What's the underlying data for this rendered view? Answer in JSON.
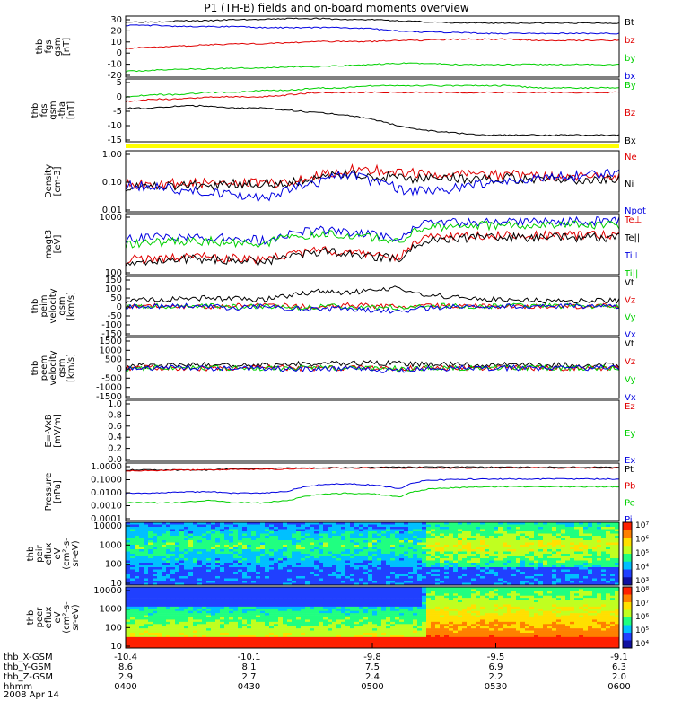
{
  "title": "P1 (TH-B) fields and on-board moments overview",
  "date_label": "2008 Apr 14",
  "colors": {
    "black": "#000000",
    "red": "#e00000",
    "green": "#00d000",
    "blue": "#0000e0",
    "yellow": "#ffff00"
  },
  "chart_data": [
    {
      "type": "line",
      "ylabel_lines": [
        "thb",
        "fgs",
        "gsm",
        "[nT]"
      ],
      "yticks": [
        "30",
        "20",
        "10",
        "0",
        "-10",
        "-20"
      ],
      "ylim": [
        -22,
        31
      ],
      "series": [
        {
          "name": "Bt",
          "color": "#000000",
          "values": [
            26,
            26,
            27,
            27,
            28,
            28,
            29,
            29,
            28,
            28,
            27,
            26,
            25,
            25,
            25,
            25,
            25,
            25,
            25
          ]
        },
        {
          "name": "bz",
          "color": "#e00000",
          "values": [
            3,
            4,
            5,
            6,
            7,
            7,
            8,
            9,
            9,
            9,
            10,
            10,
            11,
            11,
            11,
            10,
            10,
            10,
            10
          ]
        },
        {
          "name": "by",
          "color": "#00d000",
          "values": [
            -17,
            -16,
            -15,
            -15,
            -14,
            -14,
            -13,
            -13,
            -12,
            -11,
            -10,
            -10,
            -11,
            -11,
            -11,
            -11,
            -11,
            -11,
            -11
          ]
        },
        {
          "name": "bx",
          "color": "#0000e0",
          "values": [
            23,
            23,
            22,
            22,
            22,
            21,
            21,
            21,
            21,
            20,
            18,
            17,
            17,
            16,
            16,
            16,
            16,
            16,
            16
          ]
        }
      ]
    },
    {
      "type": "line",
      "ylabel_lines": [
        "thb",
        "fgs",
        "gsm",
        "-tha",
        "[nT]"
      ],
      "yticks": [
        "5",
        "0",
        "-5",
        "-10",
        "-15"
      ],
      "ylim": [
        -18,
        10
      ],
      "series": [
        {
          "name": "By",
          "color": "#00d000",
          "values": [
            2,
            3,
            3,
            4,
            4,
            5,
            5,
            6,
            6,
            7,
            7,
            7,
            7,
            7,
            7,
            6,
            6,
            6,
            6
          ]
        },
        {
          "name": "Bz",
          "color": "#e00000",
          "values": [
            0,
            1,
            1,
            2,
            2,
            2,
            3,
            4,
            4,
            4,
            4,
            4,
            4,
            4,
            4,
            4,
            4,
            4,
            4
          ]
        },
        {
          "name": "Bx",
          "color": "#000000",
          "values": [
            -3,
            -3,
            -2,
            -2,
            -3,
            -3,
            -4,
            -5,
            -6,
            -8,
            -11,
            -13,
            -14,
            -15,
            -15,
            -15,
            -15,
            -15,
            -15
          ]
        }
      ]
    },
    {
      "type": "line",
      "ylabel_lines": [
        "Density",
        "[cm-3]"
      ],
      "yticks": [
        "1.00",
        "0.10",
        "0.01"
      ],
      "log": true,
      "ylim": [
        0.01,
        1.4
      ],
      "series": [
        {
          "name": "Ne",
          "color": "#e00000",
          "values": [
            0.1,
            0.09,
            0.1,
            0.1,
            0.11,
            0.1,
            0.11,
            0.2,
            0.3,
            0.3,
            0.25,
            0.22,
            0.2,
            0.2,
            0.2,
            0.18,
            0.18,
            0.18,
            0.18
          ]
        },
        {
          "name": "Ni",
          "color": "#000000",
          "values": [
            0.08,
            0.09,
            0.08,
            0.09,
            0.1,
            0.1,
            0.1,
            0.15,
            0.2,
            0.18,
            0.16,
            0.15,
            0.15,
            0.15,
            0.15,
            0.14,
            0.14,
            0.14,
            0.14
          ]
        },
        {
          "name": "Npot",
          "color": "#0000e0",
          "values": [
            0.09,
            0.07,
            0.06,
            0.05,
            0.04,
            0.03,
            0.06,
            0.1,
            0.2,
            0.12,
            0.06,
            0.05,
            0.07,
            0.1,
            0.12,
            0.15,
            0.17,
            0.2,
            0.22
          ]
        }
      ]
    },
    {
      "type": "line",
      "ylabel_lines": [
        "magt3",
        "[eV]"
      ],
      "yticks": [
        "1000",
        "100"
      ],
      "log": true,
      "ylim": [
        30,
        8000
      ],
      "series": [
        {
          "name": "Te⊥",
          "color": "#e00000",
          "values": [
            120,
            130,
            140,
            150,
            130,
            120,
            180,
            300,
            250,
            200,
            150,
            900,
            1000,
            1100,
            1100,
            1100,
            1100,
            1100,
            1100
          ]
        },
        {
          "name": "Te||",
          "color": "#000000",
          "values": [
            100,
            110,
            120,
            130,
            110,
            100,
            150,
            250,
            200,
            160,
            120,
            700,
            800,
            900,
            900,
            900,
            900,
            900,
            900
          ]
        },
        {
          "name": "Ti⊥",
          "color": "#0000e0",
          "values": [
            800,
            900,
            900,
            950,
            800,
            700,
            1200,
            1800,
            1500,
            1300,
            900,
            3200,
            3500,
            3800,
            4000,
            4000,
            4000,
            4000,
            4000
          ]
        },
        {
          "name": "Ti||",
          "color": "#00d000",
          "values": [
            500,
            600,
            600,
            650,
            550,
            500,
            900,
            1300,
            1100,
            900,
            650,
            2200,
            2500,
            2700,
            2800,
            2800,
            2800,
            2800,
            2800
          ]
        }
      ]
    },
    {
      "type": "line",
      "ylabel_lines": [
        "thb",
        "peim",
        "velocity",
        "gsm",
        "[km/s]"
      ],
      "yticks": [
        "150",
        "100",
        "50",
        "0",
        "-50",
        "-100",
        "-150"
      ],
      "ylim": [
        -165,
        165
      ],
      "series": [
        {
          "name": "Vt",
          "color": "#000000",
          "values": [
            30,
            35,
            40,
            45,
            40,
            35,
            60,
            80,
            70,
            90,
            100,
            60,
            50,
            40,
            35,
            30,
            30,
            30,
            30
          ]
        },
        {
          "name": "Vz",
          "color": "#e00000",
          "values": [
            0,
            5,
            0,
            -5,
            0,
            5,
            0,
            -10,
            5,
            0,
            -5,
            0,
            0,
            0,
            0,
            0,
            0,
            0,
            0
          ]
        },
        {
          "name": "Vy",
          "color": "#00d000",
          "values": [
            -5,
            0,
            -5,
            0,
            -5,
            0,
            -10,
            -5,
            0,
            -10,
            -5,
            0,
            0,
            0,
            0,
            0,
            0,
            0,
            0
          ]
        },
        {
          "name": "Vx",
          "color": "#0000e0",
          "values": [
            0,
            -5,
            0,
            0,
            -10,
            0,
            -15,
            -20,
            -10,
            -25,
            -30,
            -10,
            -5,
            0,
            0,
            0,
            0,
            0,
            0
          ]
        }
      ]
    },
    {
      "type": "line",
      "ylabel_lines": [
        "thb",
        "peem",
        "velocity",
        "gsm",
        "[km/s]"
      ],
      "yticks": [
        "1500",
        "1000",
        "500",
        "0",
        "-500",
        "-1000",
        "-1500"
      ],
      "ylim": [
        -1650,
        1650
      ],
      "series": [
        {
          "name": "Vt",
          "color": "#000000",
          "values": [
            100,
            120,
            140,
            160,
            150,
            140,
            200,
            250,
            220,
            260,
            240,
            200,
            180,
            170,
            160,
            150,
            150,
            150,
            150
          ]
        },
        {
          "name": "Vz",
          "color": "#e00000",
          "values": [
            0,
            20,
            0,
            -20,
            0,
            20,
            0,
            -30,
            20,
            0,
            -20,
            0,
            0,
            0,
            0,
            0,
            0,
            0,
            0
          ]
        },
        {
          "name": "Vy",
          "color": "#00d000",
          "values": [
            -20,
            0,
            -20,
            0,
            -20,
            0,
            -30,
            -20,
            0,
            -30,
            -20,
            0,
            0,
            0,
            0,
            0,
            0,
            0,
            0
          ]
        },
        {
          "name": "Vx",
          "color": "#0000e0",
          "values": [
            0,
            -20,
            0,
            0,
            -40,
            0,
            -60,
            -80,
            -40,
            -100,
            -120,
            -40,
            -20,
            0,
            0,
            0,
            0,
            0,
            0
          ]
        }
      ]
    },
    {
      "type": "line",
      "ylabel_lines": [
        "E=-VxB",
        "[mV/m]"
      ],
      "yticks": [
        "1.0",
        "0.8",
        "0.6",
        "0.4",
        "0.2",
        "0.0"
      ],
      "ylim": [
        0,
        1.0
      ],
      "series": [
        {
          "name": "Ez",
          "color": "#e00000",
          "values": []
        },
        {
          "name": "Ey",
          "color": "#00d000",
          "values": []
        },
        {
          "name": "Ex",
          "color": "#0000e0",
          "values": []
        }
      ]
    },
    {
      "type": "line",
      "ylabel_lines": [
        "Pressure",
        "[nPa]"
      ],
      "yticks": [
        "1.0000",
        "0.1000",
        "0.0100",
        "0.0010",
        "0.0001"
      ],
      "log": true,
      "ylim": [
        0.0001,
        1.6
      ],
      "series": [
        {
          "name": "Pt",
          "color": "#000000",
          "values": [
            0.5,
            0.5,
            0.5,
            0.5,
            0.6,
            0.6,
            0.7,
            0.7,
            0.75,
            0.75,
            0.8,
            0.8,
            0.8,
            0.8,
            0.8,
            0.8,
            0.8,
            0.8,
            0.8
          ]
        },
        {
          "name": "Pb",
          "color": "#e00000",
          "values": [
            0.45,
            0.45,
            0.5,
            0.5,
            0.55,
            0.55,
            0.6,
            0.65,
            0.7,
            0.7,
            0.7,
            0.7,
            0.7,
            0.7,
            0.7,
            0.7,
            0.7,
            0.7,
            0.7
          ]
        },
        {
          "name": "Pe",
          "color": "#00d000",
          "values": [
            0.002,
            0.002,
            0.002,
            0.003,
            0.002,
            0.002,
            0.003,
            0.008,
            0.01,
            0.009,
            0.005,
            0.02,
            0.025,
            0.03,
            0.03,
            0.03,
            0.03,
            0.03,
            0.03
          ]
        },
        {
          "name": "Pi",
          "color": "#0000e0",
          "values": [
            0.01,
            0.01,
            0.012,
            0.013,
            0.01,
            0.01,
            0.015,
            0.04,
            0.05,
            0.04,
            0.02,
            0.09,
            0.1,
            0.11,
            0.11,
            0.11,
            0.11,
            0.11,
            0.11
          ]
        }
      ]
    },
    {
      "type": "heatmap",
      "ylabel_lines": [
        "thb",
        "peir",
        "eflux",
        "eV",
        "(cm²-s-",
        "sr-eV)"
      ],
      "yticks": [
        "10000",
        "1000",
        "100",
        "10"
      ],
      "colorbar_ticks": [
        "10⁷",
        "10⁶",
        "10⁵",
        "10⁴",
        "10³"
      ]
    },
    {
      "type": "heatmap",
      "ylabel_lines": [
        "thb",
        "peer",
        "eflux",
        "eV",
        "(cm²-s-",
        "sr-eV)"
      ],
      "yticks": [
        "10000",
        "1000",
        "100",
        "10"
      ],
      "colorbar_ticks": [
        "10⁸",
        "10⁷",
        "10⁶",
        "10⁵",
        "10⁴"
      ]
    }
  ],
  "x_axis": {
    "row_labels": [
      "thb_X-GSM",
      "thb_Y-GSM",
      "thb_Z-GSM",
      "hhmm"
    ],
    "columns": [
      {
        "x": "-10.4",
        "y": "8.6",
        "z": "2.9",
        "time": "0400"
      },
      {
        "x": "-10.1",
        "y": "8.1",
        "z": "2.7",
        "time": "0430"
      },
      {
        "x": "-9.8",
        "y": "7.5",
        "z": "2.4",
        "time": "0500"
      },
      {
        "x": "-9.5",
        "y": "6.9",
        "z": "2.2",
        "time": "0530"
      },
      {
        "x": "-9.1",
        "y": "6.3",
        "z": "2.0",
        "time": "0600"
      }
    ]
  }
}
